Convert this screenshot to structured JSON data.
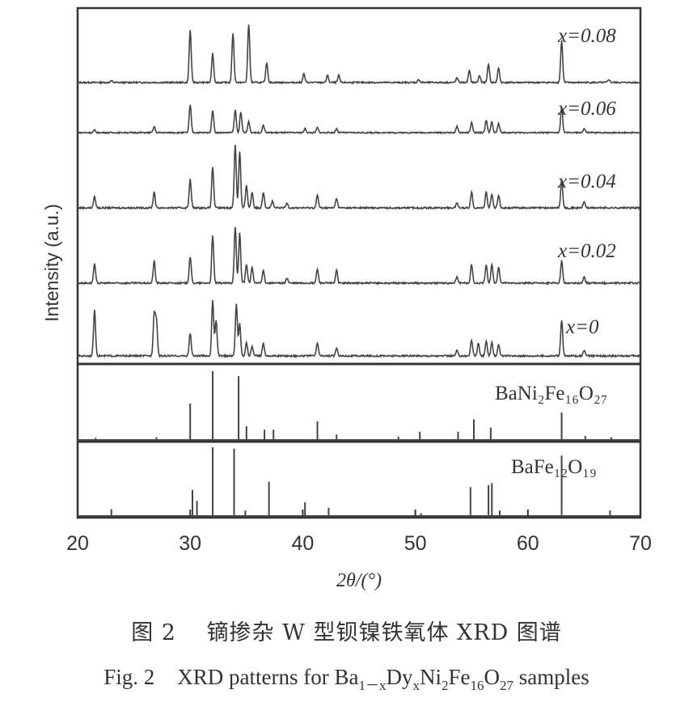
{
  "chart_data": {
    "type": "line",
    "xlabel": "2θ/(°)",
    "ylabel": "Intensity (a.u.)",
    "xlim": [
      20,
      70
    ],
    "xticks": [
      "20",
      "30",
      "40",
      "50",
      "60",
      "70"
    ],
    "panels": [
      {
        "name": "x=0.08",
        "label": "x=0.08",
        "peaks": [
          [
            23.0,
            0.03
          ],
          [
            30.0,
            0.9
          ],
          [
            32.0,
            0.5
          ],
          [
            33.8,
            0.85
          ],
          [
            35.2,
            1.0
          ],
          [
            36.8,
            0.35
          ],
          [
            40.1,
            0.15
          ],
          [
            42.2,
            0.12
          ],
          [
            43.2,
            0.12
          ],
          [
            50.3,
            0.05
          ],
          [
            53.7,
            0.08
          ],
          [
            54.8,
            0.2
          ],
          [
            55.7,
            0.12
          ],
          [
            56.5,
            0.32
          ],
          [
            57.4,
            0.25
          ],
          [
            63.0,
            0.72
          ],
          [
            67.2,
            0.05
          ]
        ]
      },
      {
        "name": "x=0.06",
        "label": "x=0.06",
        "peaks": [
          [
            21.5,
            0.05
          ],
          [
            26.8,
            0.12
          ],
          [
            30.0,
            0.55
          ],
          [
            32.0,
            0.45
          ],
          [
            34.0,
            0.45
          ],
          [
            34.5,
            0.4
          ],
          [
            35.2,
            0.22
          ],
          [
            36.5,
            0.15
          ],
          [
            40.2,
            0.08
          ],
          [
            41.3,
            0.1
          ],
          [
            43.0,
            0.08
          ],
          [
            53.7,
            0.12
          ],
          [
            55.0,
            0.2
          ],
          [
            56.3,
            0.25
          ],
          [
            56.8,
            0.22
          ],
          [
            57.4,
            0.18
          ],
          [
            63.0,
            0.5
          ],
          [
            65.0,
            0.08
          ]
        ]
      },
      {
        "name": "x=0.04",
        "label": "x=0.04",
        "peaks": [
          [
            21.5,
            0.18
          ],
          [
            26.8,
            0.25
          ],
          [
            30.0,
            0.45
          ],
          [
            32.0,
            0.65
          ],
          [
            34.0,
            1.0
          ],
          [
            34.4,
            0.9
          ],
          [
            35.0,
            0.35
          ],
          [
            35.5,
            0.25
          ],
          [
            36.5,
            0.25
          ],
          [
            37.3,
            0.1
          ],
          [
            38.6,
            0.08
          ],
          [
            41.3,
            0.2
          ],
          [
            43.0,
            0.15
          ],
          [
            53.7,
            0.08
          ],
          [
            55.0,
            0.25
          ],
          [
            56.3,
            0.25
          ],
          [
            56.8,
            0.22
          ],
          [
            57.4,
            0.2
          ],
          [
            63.0,
            0.45
          ],
          [
            65.0,
            0.1
          ]
        ]
      },
      {
        "name": "x=0.02",
        "label": "x=0.02",
        "peaks": [
          [
            21.5,
            0.3
          ],
          [
            26.8,
            0.35
          ],
          [
            30.0,
            0.42
          ],
          [
            32.0,
            0.75
          ],
          [
            34.0,
            0.9
          ],
          [
            34.4,
            0.8
          ],
          [
            35.0,
            0.3
          ],
          [
            35.5,
            0.25
          ],
          [
            36.5,
            0.2
          ],
          [
            38.6,
            0.08
          ],
          [
            41.3,
            0.22
          ],
          [
            43.0,
            0.2
          ],
          [
            53.7,
            0.1
          ],
          [
            55.0,
            0.3
          ],
          [
            56.3,
            0.28
          ],
          [
            56.8,
            0.3
          ],
          [
            57.4,
            0.25
          ],
          [
            63.0,
            0.35
          ],
          [
            65.0,
            0.1
          ]
        ]
      },
      {
        "name": "x=0",
        "label": "x=0",
        "peaks": [
          [
            21.5,
            0.7
          ],
          [
            26.8,
            0.65
          ],
          [
            27.0,
            0.55
          ],
          [
            30.0,
            0.35
          ],
          [
            32.0,
            0.85
          ],
          [
            32.3,
            0.55
          ],
          [
            34.1,
            0.8
          ],
          [
            34.4,
            0.5
          ],
          [
            35.0,
            0.2
          ],
          [
            35.5,
            0.15
          ],
          [
            36.5,
            0.2
          ],
          [
            41.3,
            0.2
          ],
          [
            43.0,
            0.12
          ],
          [
            53.7,
            0.08
          ],
          [
            55.0,
            0.25
          ],
          [
            55.6,
            0.2
          ],
          [
            56.3,
            0.22
          ],
          [
            56.8,
            0.2
          ],
          [
            57.4,
            0.18
          ],
          [
            63.0,
            0.55
          ],
          [
            65.0,
            0.08
          ]
        ]
      },
      {
        "name": "BaNi2Fe16O27",
        "label": "BaNi₂Fe₁₆O₂₇",
        "sticks": [
          [
            21.6,
            0.03
          ],
          [
            27.0,
            0.04
          ],
          [
            30.0,
            0.53
          ],
          [
            32.0,
            1.0
          ],
          [
            34.3,
            0.93
          ],
          [
            35.0,
            0.2
          ],
          [
            36.6,
            0.15
          ],
          [
            37.4,
            0.15
          ],
          [
            41.3,
            0.27
          ],
          [
            43.0,
            0.08
          ],
          [
            48.5,
            0.05
          ],
          [
            50.4,
            0.12
          ],
          [
            53.8,
            0.12
          ],
          [
            55.2,
            0.3
          ],
          [
            56.7,
            0.18
          ],
          [
            63.0,
            0.4
          ],
          [
            65.1,
            0.06
          ],
          [
            67.4,
            0.04
          ]
        ]
      },
      {
        "name": "BaFe12O19",
        "label": "BaFe₁₂O₁₉",
        "sticks": [
          [
            23.0,
            0.1
          ],
          [
            30.2,
            0.38
          ],
          [
            30.6,
            0.22
          ],
          [
            32.0,
            1.0
          ],
          [
            33.9,
            0.98
          ],
          [
            34.9,
            0.08
          ],
          [
            37.0,
            0.5
          ],
          [
            40.2,
            0.2
          ],
          [
            42.3,
            0.12
          ],
          [
            50.5,
            0.04
          ],
          [
            54.9,
            0.42
          ],
          [
            56.5,
            0.45
          ],
          [
            56.8,
            0.48
          ],
          [
            57.5,
            0.08
          ],
          [
            63.0,
            0.88
          ],
          [
            67.3,
            0.08
          ]
        ]
      }
    ]
  },
  "caption_cn": "图 2　 镝掺杂 W 型钡镍铁氧体 XRD 图谱",
  "caption_en": {
    "prefix": "Fig. 2",
    "text": "XRD patterns for Ba",
    "sub1": "1－x",
    "t2": "Dy",
    "sub2": "x",
    "t3": "Ni",
    "sub3": "2",
    "t4": "Fe",
    "sub4": "16",
    "t5": "O",
    "sub5": "27",
    "t6": " samples"
  }
}
